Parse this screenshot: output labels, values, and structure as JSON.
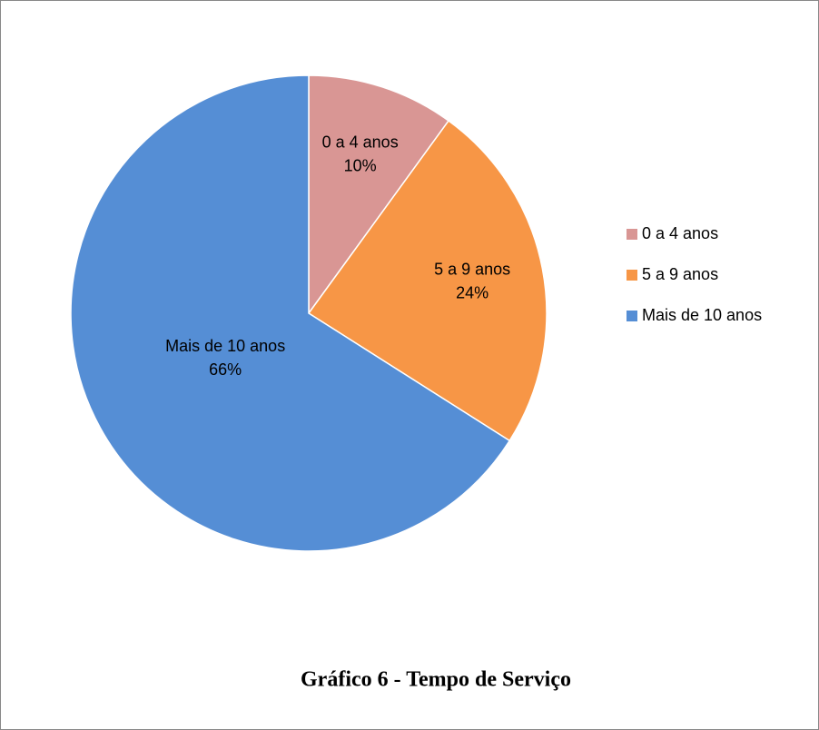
{
  "chart_data": {
    "type": "pie",
    "title": "Gráfico 6 - Tempo de Serviço",
    "categories": [
      "0 a 4 anos",
      "5 a 9 anos",
      "Mais de 10 anos"
    ],
    "values": [
      10,
      24,
      66
    ],
    "value_labels": [
      "10%",
      "24%",
      "66%"
    ],
    "colors": [
      "#d99694",
      "#f79646",
      "#558ed5"
    ],
    "legend": "right"
  }
}
